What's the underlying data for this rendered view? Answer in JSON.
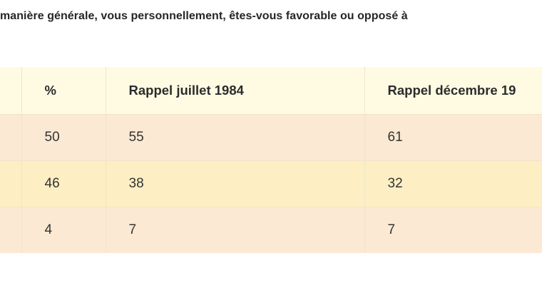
{
  "question": "manière générale, vous personnellement, êtes-vous favorable ou opposé à",
  "table": {
    "headers": [
      "",
      "%",
      "Rappel juillet 1984",
      "Rappel décembre 19"
    ],
    "rows": [
      [
        "",
        "50",
        "55",
        "61"
      ],
      [
        "",
        "46",
        "38",
        "32"
      ],
      [
        "",
        "4",
        "7",
        "7"
      ]
    ]
  },
  "colors": {
    "header_bg": "#fffbe3",
    "row_odd_bg": "#fbe9d3",
    "row_even_bg": "#fdefc3"
  }
}
